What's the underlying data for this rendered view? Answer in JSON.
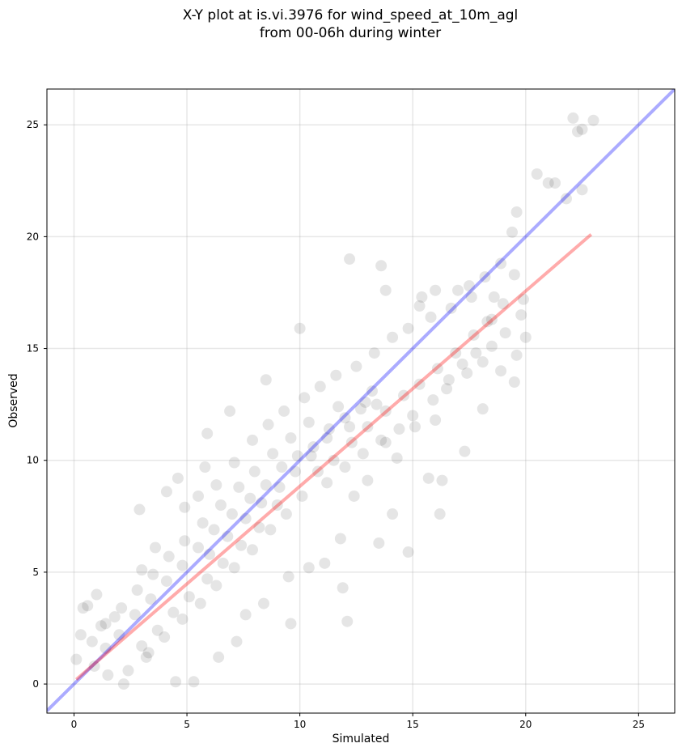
{
  "chart_data": {
    "type": "scatter",
    "title": "X-Y plot at is.vi.3976 for wind_speed_at_10m_agl",
    "subtitle": "from 00-06h during winter",
    "xlabel": "Simulated",
    "ylabel": "Observed",
    "xlim": [
      -1.2,
      26.6
    ],
    "ylim": [
      -1.3,
      26.6
    ],
    "xticks": [
      0,
      5,
      10,
      15,
      20,
      25
    ],
    "yticks": [
      0,
      5,
      10,
      15,
      20,
      25
    ],
    "grid": true,
    "series": [
      {
        "kind": "points",
        "color": "#000000",
        "opacity": 0.1,
        "points": [
          [
            22.1,
            25.3
          ],
          [
            22.3,
            24.7
          ],
          [
            22.5,
            24.8
          ],
          [
            23.0,
            25.2
          ],
          [
            21.0,
            22.4
          ],
          [
            21.3,
            22.4
          ],
          [
            20.5,
            22.8
          ],
          [
            22.5,
            22.1
          ],
          [
            21.8,
            21.7
          ],
          [
            19.6,
            21.1
          ],
          [
            19.4,
            20.2
          ],
          [
            12.2,
            19.0
          ],
          [
            13.6,
            18.7
          ],
          [
            13.8,
            17.6
          ],
          [
            10.0,
            15.9
          ],
          [
            8.5,
            13.6
          ],
          [
            6.9,
            12.2
          ],
          [
            5.9,
            11.2
          ],
          [
            4.6,
            9.2
          ],
          [
            5.8,
            9.7
          ],
          [
            4.1,
            8.6
          ],
          [
            16.2,
            7.6
          ],
          [
            12.1,
            2.8
          ],
          [
            5.3,
            0.1
          ],
          [
            4.5,
            0.1
          ],
          [
            2.2,
            0.0
          ],
          [
            0.1,
            1.1
          ],
          [
            0.3,
            2.2
          ],
          [
            0.4,
            3.4
          ],
          [
            0.6,
            3.5
          ],
          [
            1.0,
            4.0
          ],
          [
            1.8,
            3.0
          ],
          [
            2.9,
            7.8
          ],
          [
            14.1,
            7.6
          ],
          [
            14.8,
            5.9
          ],
          [
            13.5,
            6.3
          ],
          [
            11.9,
            4.3
          ],
          [
            9.6,
            2.7
          ],
          [
            18.9,
            18.8
          ],
          [
            18.2,
            18.2
          ],
          [
            19.5,
            18.3
          ],
          [
            17.5,
            17.8
          ],
          [
            17.0,
            17.6
          ],
          [
            16.0,
            17.6
          ],
          [
            15.4,
            17.3
          ],
          [
            15.3,
            16.9
          ],
          [
            18.3,
            16.2
          ],
          [
            19.8,
            16.5
          ],
          [
            20.0,
            15.5
          ],
          [
            19.6,
            14.7
          ],
          [
            19.5,
            13.5
          ],
          [
            18.9,
            14.0
          ],
          [
            18.1,
            12.3
          ],
          [
            17.3,
            10.4
          ],
          [
            16.3,
            9.1
          ],
          [
            15.7,
            9.2
          ],
          [
            18.6,
            17.3
          ],
          [
            19.0,
            17.0
          ],
          [
            19.9,
            17.2
          ],
          [
            19.1,
            15.7
          ],
          [
            18.5,
            15.1
          ],
          [
            17.8,
            14.8
          ],
          [
            17.2,
            14.3
          ],
          [
            16.6,
            13.6
          ],
          [
            16.0,
            11.8
          ],
          [
            15.1,
            11.5
          ],
          [
            14.3,
            10.1
          ],
          [
            13.8,
            10.8
          ],
          [
            13.0,
            9.1
          ],
          [
            12.4,
            8.4
          ],
          [
            11.8,
            6.5
          ],
          [
            11.1,
            5.4
          ],
          [
            10.4,
            5.2
          ],
          [
            9.5,
            4.8
          ],
          [
            8.4,
            3.6
          ],
          [
            7.6,
            3.1
          ],
          [
            7.2,
            1.9
          ],
          [
            6.4,
            1.2
          ],
          [
            3.2,
            1.2
          ],
          [
            2.4,
            0.6
          ],
          [
            1.5,
            0.4
          ],
          [
            0.9,
            0.8
          ],
          [
            1.2,
            2.6
          ],
          [
            3.0,
            5.1
          ],
          [
            3.6,
            6.1
          ],
          [
            4.9,
            7.9
          ],
          [
            5.5,
            8.4
          ],
          [
            6.3,
            8.9
          ],
          [
            7.1,
            9.9
          ],
          [
            7.9,
            10.9
          ],
          [
            8.6,
            11.6
          ],
          [
            9.3,
            12.2
          ],
          [
            10.2,
            12.8
          ],
          [
            10.9,
            13.3
          ],
          [
            11.6,
            13.8
          ],
          [
            12.5,
            14.2
          ],
          [
            13.3,
            14.8
          ],
          [
            14.1,
            15.5
          ],
          [
            14.8,
            15.9
          ],
          [
            15.8,
            16.4
          ],
          [
            16.7,
            16.8
          ],
          [
            17.6,
            17.3
          ],
          [
            13.2,
            13.1
          ],
          [
            12.7,
            12.3
          ],
          [
            12.0,
            11.9
          ],
          [
            11.3,
            11.4
          ],
          [
            10.6,
            10.6
          ],
          [
            9.9,
            10.2
          ],
          [
            9.2,
            9.7
          ],
          [
            8.5,
            8.9
          ],
          [
            7.8,
            8.3
          ],
          [
            7.0,
            7.6
          ],
          [
            6.2,
            6.9
          ],
          [
            5.5,
            6.1
          ],
          [
            4.8,
            5.3
          ],
          [
            4.1,
            4.6
          ],
          [
            3.4,
            3.8
          ],
          [
            2.7,
            3.1
          ],
          [
            2.0,
            2.2
          ],
          [
            1.4,
            1.6
          ],
          [
            9.0,
            8.0
          ],
          [
            8.2,
            7.0
          ],
          [
            7.4,
            6.2
          ],
          [
            6.6,
            5.4
          ],
          [
            5.9,
            4.7
          ],
          [
            5.1,
            3.9
          ],
          [
            4.4,
            3.2
          ],
          [
            3.7,
            2.4
          ],
          [
            3.0,
            1.7
          ],
          [
            10.8,
            9.5
          ],
          [
            11.5,
            10.0
          ],
          [
            12.3,
            10.8
          ],
          [
            13.0,
            11.5
          ],
          [
            13.8,
            12.2
          ],
          [
            14.6,
            12.9
          ],
          [
            15.3,
            13.4
          ],
          [
            16.1,
            14.1
          ],
          [
            16.9,
            14.8
          ],
          [
            17.7,
            15.6
          ],
          [
            18.5,
            16.3
          ],
          [
            12.9,
            12.6
          ],
          [
            11.7,
            12.4
          ],
          [
            10.4,
            11.7
          ],
          [
            9.6,
            11.0
          ],
          [
            8.8,
            10.3
          ],
          [
            8.0,
            9.5
          ],
          [
            7.3,
            8.8
          ],
          [
            6.5,
            8.0
          ],
          [
            5.7,
            7.2
          ],
          [
            4.9,
            6.4
          ],
          [
            4.2,
            5.7
          ],
          [
            3.5,
            4.9
          ],
          [
            2.8,
            4.2
          ],
          [
            2.1,
            3.4
          ],
          [
            1.4,
            2.7
          ],
          [
            0.8,
            1.9
          ],
          [
            10.1,
            8.4
          ],
          [
            9.4,
            7.6
          ],
          [
            8.7,
            6.9
          ],
          [
            7.9,
            6.0
          ],
          [
            7.1,
            5.2
          ],
          [
            6.3,
            4.4
          ],
          [
            5.6,
            3.6
          ],
          [
            4.8,
            2.9
          ],
          [
            4.0,
            2.1
          ],
          [
            3.3,
            1.4
          ],
          [
            11.2,
            9.0
          ],
          [
            12.0,
            9.7
          ],
          [
            12.8,
            10.3
          ],
          [
            13.6,
            10.9
          ],
          [
            14.4,
            11.4
          ],
          [
            15.0,
            12.0
          ],
          [
            15.9,
            12.7
          ],
          [
            16.5,
            13.2
          ],
          [
            17.4,
            13.9
          ],
          [
            18.1,
            14.4
          ],
          [
            6.0,
            5.8
          ],
          [
            6.8,
            6.6
          ],
          [
            7.6,
            7.4
          ],
          [
            8.3,
            8.1
          ],
          [
            9.1,
            8.8
          ],
          [
            9.8,
            9.5
          ],
          [
            10.5,
            10.2
          ],
          [
            11.2,
            11.0
          ],
          [
            12.2,
            11.5
          ],
          [
            13.4,
            12.5
          ]
        ]
      },
      {
        "kind": "line",
        "color": "#0000ff",
        "opacity": 0.33,
        "x": [
          -1.2,
          26.6
        ],
        "y": [
          -1.2,
          26.6
        ]
      },
      {
        "kind": "line",
        "color": "#ff0000",
        "opacity": 0.33,
        "x": [
          0.1,
          22.9
        ],
        "y": [
          0.2,
          20.1
        ]
      }
    ]
  }
}
